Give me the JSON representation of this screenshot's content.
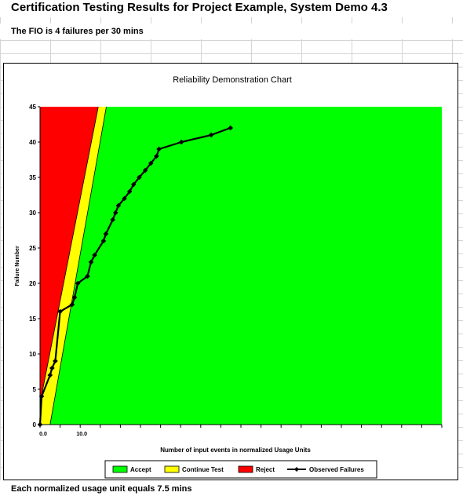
{
  "sheet": {
    "title": "Certification Testing Results for Project Example, System Demo 4.3",
    "fio_note": "The FIO is 4 failures per 30 mins",
    "footer_note": "Each normalized usage unit equals 7.5 mins"
  },
  "colors": {
    "accept": "#00ff00",
    "continue": "#ffff00",
    "reject": "#ff0000",
    "observed": "#000000"
  },
  "chart_data": {
    "type": "area",
    "title": "Reliability Demonstration Chart",
    "xlabel": "Number of input events in normalized Usage Units",
    "ylabel": "Failure Number",
    "xlim": [
      0,
      100
    ],
    "ylim": [
      0,
      45
    ],
    "yticks": [
      "0",
      "5",
      "10",
      "15",
      "20",
      "25",
      "30",
      "35",
      "40",
      "45"
    ],
    "xtick_labels": [
      "0.0",
      "10.0"
    ],
    "legend_position": "bottom",
    "grid": false,
    "regions": [
      {
        "name": "Accept"
      },
      {
        "name": "Continue Test"
      },
      {
        "name": "Reject"
      }
    ],
    "reject_boundary": [
      [
        0,
        3
      ],
      [
        14.5,
        45
      ]
    ],
    "accept_boundary": [
      [
        2.5,
        0
      ],
      [
        16.5,
        45
      ]
    ],
    "series": [
      {
        "name": "Observed Failures",
        "points": [
          [
            0,
            0
          ],
          [
            0.4,
            4
          ],
          [
            2.5,
            7
          ],
          [
            3,
            8
          ],
          [
            3.8,
            9
          ],
          [
            5,
            16
          ],
          [
            8,
            17
          ],
          [
            8.6,
            18
          ],
          [
            9.4,
            20
          ],
          [
            11.8,
            21
          ],
          [
            12.7,
            23
          ],
          [
            13.6,
            24
          ],
          [
            15.8,
            26
          ],
          [
            16.4,
            27
          ],
          [
            18.1,
            29
          ],
          [
            18.8,
            30
          ],
          [
            19.5,
            31
          ],
          [
            21,
            32
          ],
          [
            22.3,
            33
          ],
          [
            23.3,
            34
          ],
          [
            24.7,
            35
          ],
          [
            26.2,
            36
          ],
          [
            27.6,
            37
          ],
          [
            29,
            38
          ],
          [
            29.6,
            39
          ],
          [
            35.2,
            40
          ],
          [
            42.6,
            41
          ],
          [
            47.4,
            42
          ]
        ]
      }
    ]
  }
}
